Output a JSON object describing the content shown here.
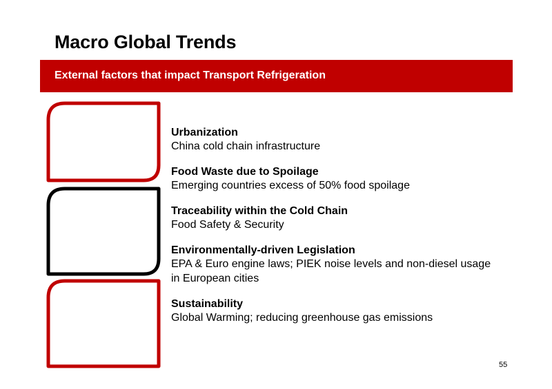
{
  "slide": {
    "title": "Macro Global Trends",
    "subtitle": "External factors that impact Transport Refrigeration",
    "page_number": "55",
    "accent_color": "#c00000"
  },
  "trends": [
    {
      "title": "Urbanization",
      "description": "China cold chain infrastructure"
    },
    {
      "title": "Food Waste due to Spoilage",
      "description": "Emerging countries excess of 50% food spoilage"
    },
    {
      "title": "Traceability within the Cold Chain",
      "description": "Food Safety & Security"
    },
    {
      "title": "Environmentally-driven Legislation",
      "description": "EPA & Euro engine laws; PIEK noise levels and non-diesel usage in European cities"
    },
    {
      "title": "Sustainability",
      "description": "Global Warming; reducing greenhouse gas emissions"
    }
  ]
}
